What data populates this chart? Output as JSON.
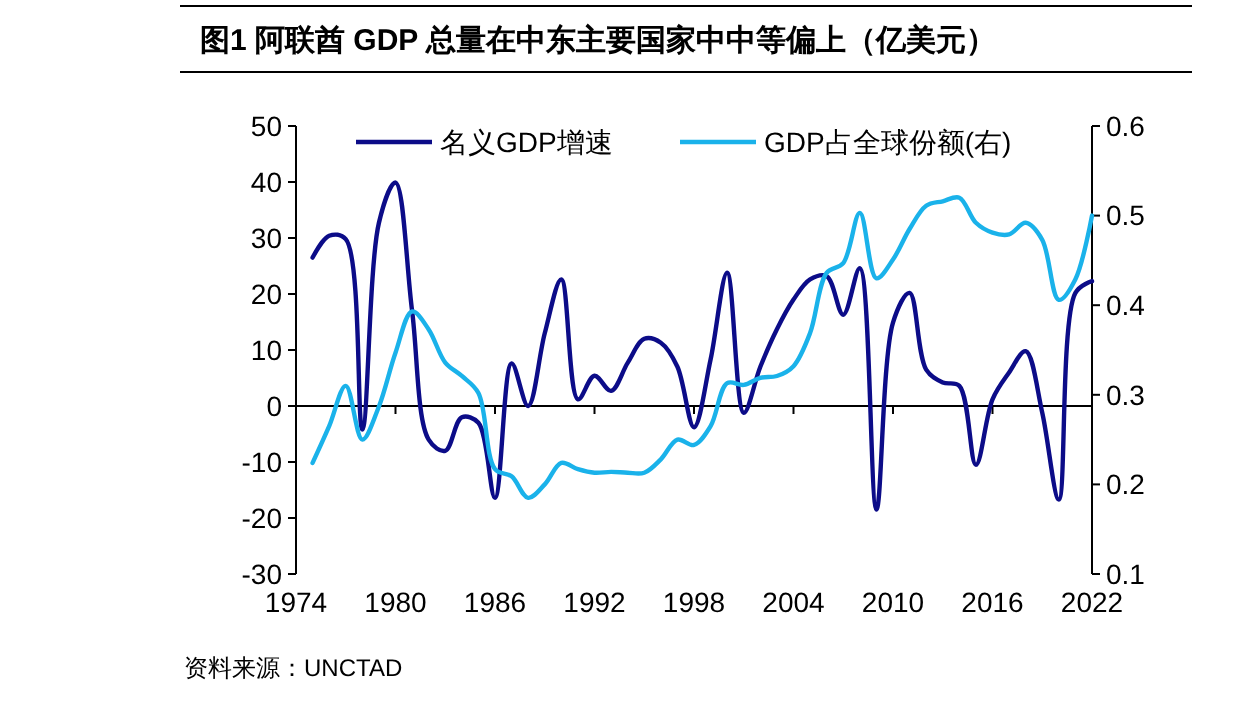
{
  "chart_data": {
    "type": "line",
    "title": "图1  阿联酋 GDP 总量在中东主要国家中中等偏上（亿美元）",
    "x": [
      1975,
      1976,
      1977,
      1978,
      1979,
      1980,
      1981,
      1982,
      1983,
      1984,
      1985,
      1986,
      1987,
      1988,
      1989,
      1990,
      1991,
      1992,
      1993,
      1994,
      1995,
      1996,
      1997,
      1998,
      1999,
      2000,
      2001,
      2002,
      2003,
      2004,
      2005,
      2006,
      2007,
      2008,
      2009,
      2010,
      2011,
      2012,
      2013,
      2014,
      2015,
      2016,
      2017,
      2018,
      2019,
      2020,
      2021,
      2022
    ],
    "series": [
      {
        "name": "名义GDP增速",
        "color": "#0c0c88",
        "values": [
          26.5,
          30.4,
          29.8,
          -4.2,
          32.7,
          39.9,
          17,
          -6,
          -8,
          -2,
          -3,
          -16.4,
          7.6,
          0,
          13,
          22.6,
          1.2,
          5.4,
          2.7,
          7.7,
          12,
          11.3,
          7,
          -3.8,
          8.3,
          23.8,
          -1.2,
          7,
          13.7,
          19,
          22.6,
          23.2,
          16.3,
          24.6,
          -18.5,
          14.9,
          20.2,
          6.5,
          4.2,
          3.6,
          -10.5,
          1.2,
          6,
          9.8,
          -1.2,
          -16.7,
          20.2,
          22.3
        ]
      },
      {
        "name": "GDP占全球份额(右)",
        "color": "#1ab2ea",
        "axis": "y2",
        "values": [
          0.224,
          0.265,
          0.31,
          0.25,
          0.287,
          0.347,
          0.393,
          0.373,
          0.336,
          0.321,
          0.302,
          0.217,
          0.209,
          0.185,
          0.2,
          0.224,
          0.217,
          0.213,
          0.214,
          0.213,
          0.213,
          0.228,
          0.25,
          0.244,
          0.265,
          0.313,
          0.311,
          0.319,
          0.321,
          0.332,
          0.369,
          0.436,
          0.447,
          0.503,
          0.43,
          0.451,
          0.485,
          0.511,
          0.516,
          0.52,
          0.492,
          0.481,
          0.479,
          0.492,
          0.473,
          0.406,
          0.429,
          0.5
        ]
      }
    ],
    "xlim": [
      1974,
      2022
    ],
    "xticks": [
      1974,
      1980,
      1986,
      1992,
      1998,
      2004,
      2010,
      2016,
      2022
    ],
    "ylim": [
      -30,
      50
    ],
    "yticks": [
      -30,
      -20,
      -10,
      0,
      10,
      20,
      30,
      40,
      50
    ],
    "y2lim": [
      0.1,
      0.6
    ],
    "y2ticks": [
      0.1,
      0.2,
      0.3,
      0.4,
      0.5,
      0.6
    ],
    "legend": "top",
    "marker": "none",
    "line_style": "solid",
    "annotations": [
      "资料来源：UNCTAD"
    ]
  }
}
